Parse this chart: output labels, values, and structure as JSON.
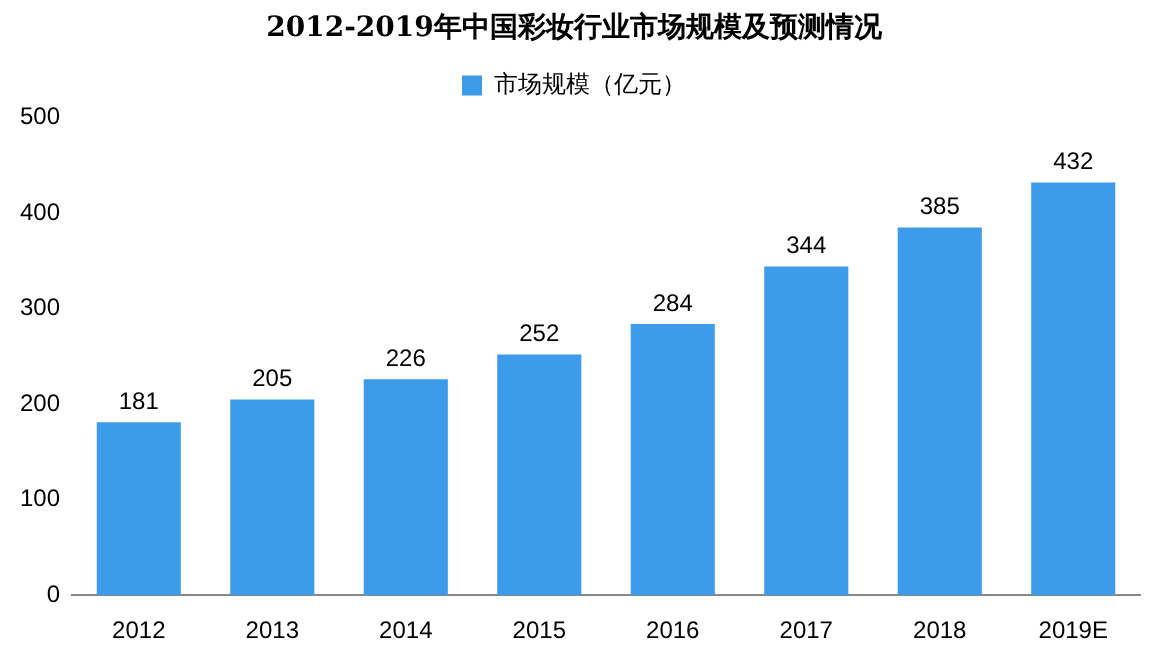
{
  "chart_data": {
    "type": "bar",
    "title": "2012-2019年中国彩妆行业市场规模及预测情况",
    "categories": [
      "2012",
      "2013",
      "2014",
      "2015",
      "2016",
      "2017",
      "2018",
      "2019E"
    ],
    "series": [
      {
        "name": "市场规模（亿元）",
        "color": "#3d9be9",
        "values": [
          181,
          205,
          226,
          252,
          284,
          344,
          385,
          432
        ]
      }
    ],
    "ylim": [
      0,
      500
    ],
    "yticks": [
      0,
      100,
      200,
      300,
      400,
      500
    ],
    "grid": false,
    "legend": "top",
    "data_labels": true
  }
}
